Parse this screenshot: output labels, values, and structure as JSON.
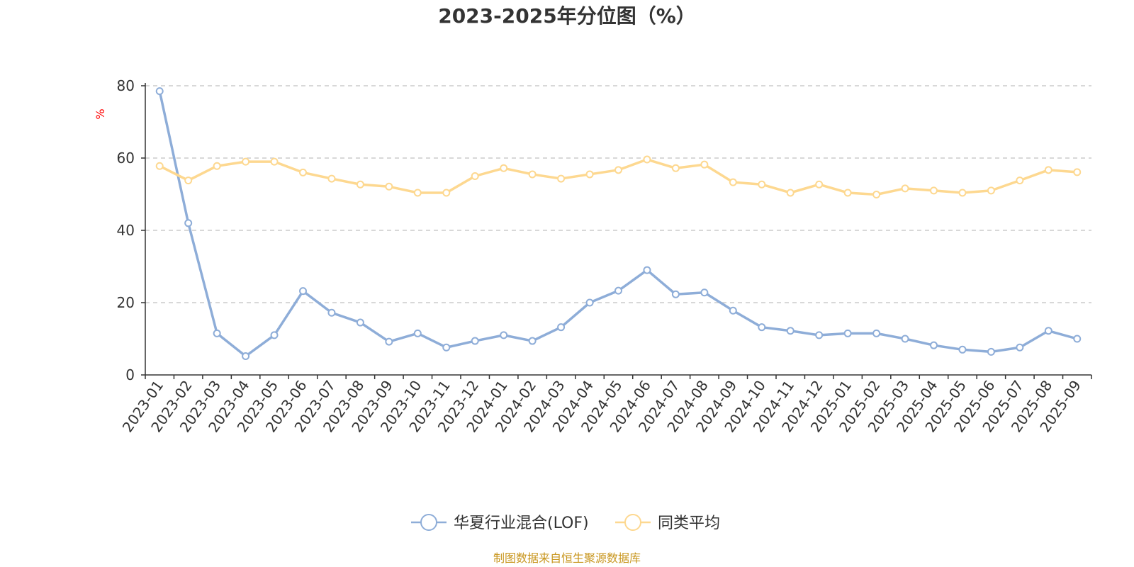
{
  "chart_data": {
    "type": "line",
    "title": "2023-2025年分位图（%）",
    "ylabel": "%",
    "xlabel": "",
    "ylim": [
      0,
      80
    ],
    "yticks": [
      0,
      20,
      40,
      60,
      80
    ],
    "grid": true,
    "legend_position": "bottom-center",
    "categories": [
      "2023-01",
      "2023-02",
      "2023-03",
      "2023-04",
      "2023-05",
      "2023-06",
      "2023-07",
      "2023-08",
      "2023-09",
      "2023-10",
      "2023-11",
      "2023-12",
      "2024-01",
      "2024-02",
      "2024-03",
      "2024-04",
      "2024-05",
      "2024-06",
      "2024-07",
      "2024-08",
      "2024-09",
      "2024-10",
      "2024-11",
      "2024-12",
      "2025-01",
      "2025-02",
      "2025-03",
      "2025-04",
      "2025-05",
      "2025-06",
      "2025-07",
      "2025-08",
      "2025-09"
    ],
    "series": [
      {
        "name": "华夏行业混合(LOF)",
        "color": "#8eadd8",
        "values": [
          78.5,
          42,
          11.5,
          5.2,
          11,
          23.2,
          17.2,
          14.5,
          9.2,
          11.5,
          7.6,
          9.4,
          11,
          9.4,
          13.2,
          20,
          23.3,
          29,
          22.3,
          22.8,
          17.8,
          13.2,
          12.2,
          11,
          11.5,
          11.5,
          10,
          8.2,
          7,
          6.4,
          7.6,
          12.2,
          10
        ]
      },
      {
        "name": "同类平均",
        "color": "#fdd890",
        "values": [
          57.8,
          53.8,
          57.8,
          59,
          59,
          56,
          54.3,
          52.7,
          52.1,
          50.4,
          50.4,
          55,
          57.2,
          55.5,
          54.3,
          55.5,
          56.7,
          59.6,
          57.2,
          58.2,
          53.3,
          52.7,
          50.4,
          52.7,
          50.4,
          49.9,
          51.6,
          51,
          50.4,
          51,
          53.8,
          56.7,
          56.1
        ]
      }
    ],
    "source": "制图数据来自恒生聚源数据库"
  }
}
